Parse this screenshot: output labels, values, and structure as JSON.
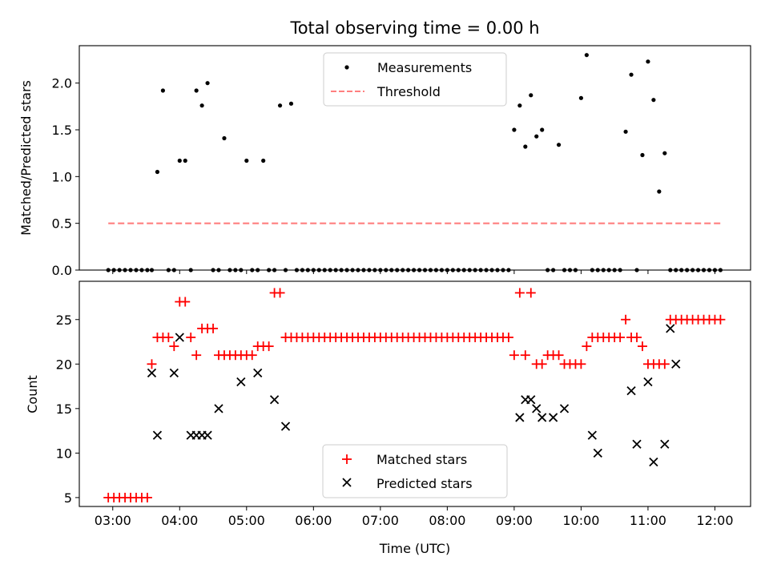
{
  "chart_data": [
    {
      "type": "scatter",
      "title": "Total observing time = 0.00 h",
      "xlabel": "",
      "ylabel": "Matched/Predicted stars",
      "xlim": [
        "02:30",
        "12:32"
      ],
      "ylim": [
        0,
        2.4
      ],
      "yticks": [
        "0.0",
        "0.5",
        "1.0",
        "1.5",
        "2.0"
      ],
      "xticks": [
        "03:00",
        "04:00",
        "05:00",
        "06:00",
        "07:00",
        "08:00",
        "09:00",
        "10:00",
        "11:00",
        "12:00"
      ],
      "grid": false,
      "legend_position": "top-center",
      "series": [
        {
          "name": "Measurements",
          "kind": "scatter",
          "color": "#000000",
          "x": [
            "02:56",
            "03:01",
            "03:06",
            "03:11",
            "03:16",
            "03:21",
            "03:26",
            "03:31",
            "03:35",
            "03:40",
            "03:45",
            "03:50",
            "03:55",
            "04:00",
            "04:05",
            "04:10",
            "04:15",
            "04:20",
            "04:25",
            "04:30",
            "04:35",
            "04:40",
            "04:45",
            "04:50",
            "04:55",
            "05:00",
            "05:05",
            "05:10",
            "05:15",
            "05:20",
            "05:25",
            "05:30",
            "05:35",
            "05:40",
            "05:45",
            "05:50",
            "05:55",
            "06:00",
            "06:05",
            "06:10",
            "06:15",
            "06:20",
            "06:25",
            "06:30",
            "06:35",
            "06:40",
            "06:45",
            "06:50",
            "06:55",
            "07:00",
            "07:05",
            "07:10",
            "07:15",
            "07:20",
            "07:25",
            "07:30",
            "07:35",
            "07:40",
            "07:45",
            "07:50",
            "07:55",
            "08:00",
            "08:05",
            "08:10",
            "08:15",
            "08:20",
            "08:25",
            "08:30",
            "08:35",
            "08:40",
            "08:45",
            "08:50",
            "08:55",
            "09:00",
            "09:05",
            "09:10",
            "09:15",
            "09:20",
            "09:25",
            "09:30",
            "09:35",
            "09:40",
            "09:45",
            "09:50",
            "09:55",
            "10:00",
            "10:05",
            "10:10",
            "10:15",
            "10:20",
            "10:25",
            "10:30",
            "10:35",
            "10:40",
            "10:45",
            "10:50",
            "10:55",
            "11:00",
            "11:05",
            "11:10",
            "11:15",
            "11:20",
            "11:25",
            "11:30",
            "11:35",
            "11:40",
            "11:45",
            "11:50",
            "11:55",
            "12:00",
            "12:05"
          ],
          "y": [
            0,
            0,
            0,
            0,
            0,
            0,
            0,
            0,
            0,
            1.05,
            1.92,
            0,
            0,
            1.17,
            1.17,
            0,
            1.92,
            1.76,
            2.0,
            0,
            0,
            1.41,
            0,
            0,
            0,
            1.17,
            0,
            0,
            1.17,
            0,
            0,
            1.76,
            0,
            1.78,
            0,
            0,
            0,
            0,
            0,
            0,
            0,
            0,
            0,
            0,
            0,
            0,
            0,
            0,
            0,
            0,
            0,
            0,
            0,
            0,
            0,
            0,
            0,
            0,
            0,
            0,
            0,
            0,
            0,
            0,
            0,
            0,
            0,
            0,
            0,
            0,
            0,
            0,
            0,
            1.5,
            1.76,
            1.32,
            1.87,
            1.43,
            1.5,
            0,
            0,
            1.34,
            0,
            0,
            0,
            1.84,
            2.3,
            0,
            0,
            0,
            0,
            0,
            0,
            1.48,
            2.09,
            0,
            1.23,
            2.23,
            1.82,
            0.84,
            1.25,
            0,
            0,
            0,
            0,
            0,
            0,
            0,
            0,
            0,
            0
          ]
        },
        {
          "name": "Threshold",
          "kind": "line",
          "style": "dashed",
          "color": "#ff7f7f",
          "x": [
            "02:56",
            "12:05"
          ],
          "y": [
            0.5,
            0.5
          ]
        }
      ]
    },
    {
      "type": "scatter",
      "title": "",
      "xlabel": "Time (UTC)",
      "ylabel": "Count",
      "xlim": [
        "02:30",
        "12:32"
      ],
      "ylim": [
        4,
        29.3
      ],
      "yticks": [
        "5",
        "10",
        "15",
        "20",
        "25"
      ],
      "xticks": [
        "03:00",
        "04:00",
        "05:00",
        "06:00",
        "07:00",
        "08:00",
        "09:00",
        "10:00",
        "11:00",
        "12:00"
      ],
      "grid": false,
      "legend_position": "bottom-center",
      "series": [
        {
          "name": "Matched stars",
          "marker": "+",
          "color": "#ff0000",
          "x": [
            "02:56",
            "03:01",
            "03:06",
            "03:11",
            "03:16",
            "03:21",
            "03:26",
            "03:31",
            "03:35",
            "03:40",
            "03:45",
            "03:50",
            "03:55",
            "04:00",
            "04:05",
            "04:10",
            "04:15",
            "04:20",
            "04:25",
            "04:30",
            "04:35",
            "04:40",
            "04:45",
            "04:50",
            "04:55",
            "05:00",
            "05:05",
            "05:10",
            "05:15",
            "05:20",
            "05:25",
            "05:30",
            "05:35",
            "05:40",
            "05:45",
            "05:50",
            "05:55",
            "06:00",
            "06:05",
            "06:10",
            "06:15",
            "06:20",
            "06:25",
            "06:30",
            "06:35",
            "06:40",
            "06:45",
            "06:50",
            "06:55",
            "07:00",
            "07:05",
            "07:10",
            "07:15",
            "07:20",
            "07:25",
            "07:30",
            "07:35",
            "07:40",
            "07:45",
            "07:50",
            "07:55",
            "08:00",
            "08:05",
            "08:10",
            "08:15",
            "08:20",
            "08:25",
            "08:30",
            "08:35",
            "08:40",
            "08:45",
            "08:50",
            "08:55",
            "09:00",
            "09:05",
            "09:10",
            "09:15",
            "09:20",
            "09:25",
            "09:30",
            "09:35",
            "09:40",
            "09:45",
            "09:50",
            "09:55",
            "10:00",
            "10:05",
            "10:10",
            "10:15",
            "10:20",
            "10:25",
            "10:30",
            "10:35",
            "10:40",
            "10:45",
            "10:50",
            "10:55",
            "11:00",
            "11:05",
            "11:10",
            "11:15",
            "11:20",
            "11:25",
            "11:30",
            "11:35",
            "11:40",
            "11:45",
            "11:50",
            "11:55",
            "12:00",
            "12:05"
          ],
          "y": [
            5,
            5,
            5,
            5,
            5,
            5,
            5,
            5,
            20,
            23,
            23,
            23,
            22,
            27,
            27,
            23,
            21,
            24,
            24,
            24,
            21,
            21,
            21,
            21,
            21,
            21,
            21,
            22,
            22,
            22,
            28,
            28,
            23,
            23,
            23,
            23,
            23,
            23,
            23,
            23,
            23,
            23,
            23,
            23,
            23,
            23,
            23,
            23,
            23,
            23,
            23,
            23,
            23,
            23,
            23,
            23,
            23,
            23,
            23,
            23,
            23,
            23,
            23,
            23,
            23,
            23,
            23,
            23,
            23,
            23,
            23,
            23,
            23,
            21,
            28,
            21,
            28,
            20,
            20,
            21,
            21,
            21,
            20,
            20,
            20,
            20,
            22,
            23,
            23,
            23,
            23,
            23,
            23,
            25,
            23,
            23,
            22,
            20,
            20,
            20,
            20,
            25,
            25,
            25,
            25,
            25,
            25,
            25,
            25,
            25,
            25
          ]
        },
        {
          "name": "Predicted stars",
          "marker": "x",
          "color": "#000000",
          "x": [
            "03:35",
            "03:40",
            "03:55",
            "04:00",
            "04:10",
            "04:15",
            "04:20",
            "04:25",
            "04:35",
            "04:55",
            "05:10",
            "05:25",
            "05:35",
            "09:05",
            "09:10",
            "09:15",
            "09:20",
            "09:25",
            "09:35",
            "09:45",
            "10:10",
            "10:15",
            "10:45",
            "10:50",
            "11:00",
            "11:05",
            "11:15",
            "11:20",
            "11:25"
          ],
          "y": [
            19,
            12,
            19,
            23,
            12,
            12,
            12,
            12,
            15,
            18,
            19,
            16,
            13,
            14,
            16,
            16,
            15,
            14,
            14,
            15,
            12,
            10,
            17,
            11,
            18,
            9,
            11,
            24,
            20
          ]
        }
      ]
    }
  ]
}
